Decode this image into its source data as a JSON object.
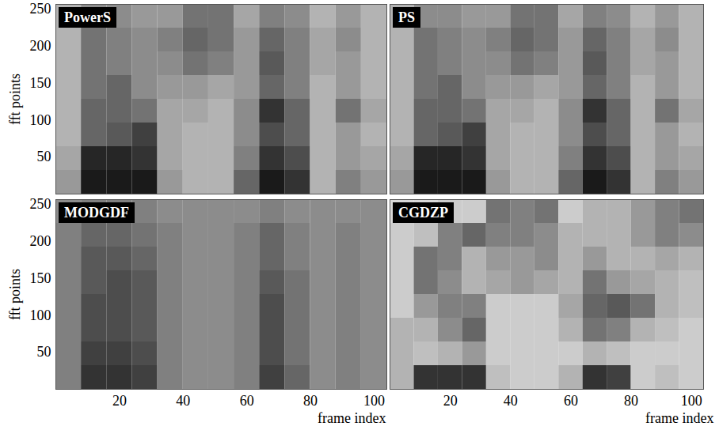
{
  "chart_data": [
    {
      "type": "heatmap",
      "title": "PowerS",
      "ylabel": "fft points",
      "tick_labels": "y",
      "xlim": [
        0,
        104
      ],
      "xticks": [
        20,
        40,
        60,
        80,
        100
      ],
      "ylim": [
        0,
        256
      ],
      "yticks": [
        50,
        100,
        150,
        200,
        250
      ],
      "cell_range": [
        0,
        1
      ],
      "x_bins": [
        0,
        8,
        16,
        24,
        32,
        40,
        48,
        56,
        64,
        72,
        80,
        88,
        96,
        104
      ],
      "y_bins": [
        0,
        32,
        64,
        96,
        128,
        160,
        192,
        224,
        256
      ],
      "cells": [
        [
          0.4,
          0.9,
          0.9,
          0.9,
          0.4,
          0.3,
          0.3,
          0.6,
          0.9,
          0.8,
          0.3,
          0.5,
          0.4
        ],
        [
          0.35,
          0.85,
          0.85,
          0.8,
          0.35,
          0.3,
          0.3,
          0.5,
          0.8,
          0.7,
          0.3,
          0.4,
          0.35
        ],
        [
          0.3,
          0.6,
          0.65,
          0.75,
          0.35,
          0.3,
          0.3,
          0.45,
          0.7,
          0.6,
          0.3,
          0.4,
          0.3
        ],
        [
          0.3,
          0.6,
          0.6,
          0.55,
          0.35,
          0.35,
          0.3,
          0.45,
          0.8,
          0.6,
          0.3,
          0.55,
          0.35
        ],
        [
          0.3,
          0.55,
          0.6,
          0.45,
          0.4,
          0.4,
          0.35,
          0.4,
          0.6,
          0.5,
          0.3,
          0.4,
          0.3
        ],
        [
          0.3,
          0.55,
          0.5,
          0.45,
          0.45,
          0.55,
          0.5,
          0.4,
          0.65,
          0.5,
          0.35,
          0.4,
          0.3
        ],
        [
          0.3,
          0.55,
          0.5,
          0.45,
          0.5,
          0.6,
          0.55,
          0.4,
          0.6,
          0.5,
          0.35,
          0.45,
          0.3
        ],
        [
          0.3,
          0.45,
          0.45,
          0.4,
          0.4,
          0.55,
          0.55,
          0.35,
          0.5,
          0.45,
          0.3,
          0.4,
          0.3
        ]
      ]
    },
    {
      "type": "heatmap",
      "title": "PS",
      "tick_labels": false,
      "xlim": [
        0,
        104
      ],
      "xticks": [
        20,
        40,
        60,
        80,
        100
      ],
      "ylim": [
        0,
        256
      ],
      "yticks": [
        50,
        100,
        150,
        200,
        250
      ],
      "cell_range": [
        0,
        1
      ],
      "x_bins": [
        0,
        8,
        16,
        24,
        32,
        40,
        48,
        56,
        64,
        72,
        80,
        88,
        96,
        104
      ],
      "y_bins": [
        0,
        32,
        64,
        96,
        128,
        160,
        192,
        224,
        256
      ],
      "cells": [
        [
          0.4,
          0.9,
          0.9,
          0.9,
          0.4,
          0.3,
          0.3,
          0.6,
          0.9,
          0.8,
          0.3,
          0.5,
          0.4
        ],
        [
          0.35,
          0.85,
          0.85,
          0.8,
          0.35,
          0.3,
          0.3,
          0.5,
          0.8,
          0.7,
          0.3,
          0.4,
          0.35
        ],
        [
          0.3,
          0.6,
          0.65,
          0.75,
          0.35,
          0.3,
          0.3,
          0.45,
          0.7,
          0.6,
          0.3,
          0.4,
          0.3
        ],
        [
          0.3,
          0.6,
          0.6,
          0.55,
          0.35,
          0.35,
          0.3,
          0.45,
          0.8,
          0.6,
          0.3,
          0.55,
          0.35
        ],
        [
          0.3,
          0.55,
          0.6,
          0.45,
          0.4,
          0.4,
          0.35,
          0.4,
          0.6,
          0.5,
          0.3,
          0.4,
          0.3
        ],
        [
          0.3,
          0.55,
          0.5,
          0.45,
          0.45,
          0.55,
          0.5,
          0.4,
          0.65,
          0.5,
          0.35,
          0.4,
          0.3
        ],
        [
          0.3,
          0.55,
          0.5,
          0.45,
          0.5,
          0.6,
          0.55,
          0.4,
          0.6,
          0.5,
          0.35,
          0.45,
          0.3
        ],
        [
          0.3,
          0.45,
          0.45,
          0.4,
          0.4,
          0.55,
          0.55,
          0.35,
          0.5,
          0.45,
          0.3,
          0.4,
          0.3
        ]
      ]
    },
    {
      "type": "heatmap",
      "title": "MODGDF",
      "xlabel": "frame index",
      "ylabel": "fft points",
      "tick_labels": true,
      "xlim": [
        0,
        104
      ],
      "xticks": [
        20,
        40,
        60,
        80,
        100
      ],
      "ylim": [
        0,
        256
      ],
      "yticks": [
        50,
        100,
        150,
        200,
        250
      ],
      "cell_range": [
        0,
        1
      ],
      "x_bins": [
        0,
        8,
        16,
        24,
        32,
        40,
        48,
        56,
        64,
        72,
        80,
        88,
        96,
        104
      ],
      "y_bins": [
        0,
        32,
        64,
        96,
        128,
        160,
        192,
        224,
        256
      ],
      "cells": [
        [
          0.5,
          0.8,
          0.8,
          0.75,
          0.5,
          0.45,
          0.45,
          0.5,
          0.75,
          0.6,
          0.45,
          0.5,
          0.45
        ],
        [
          0.5,
          0.75,
          0.75,
          0.7,
          0.5,
          0.45,
          0.45,
          0.5,
          0.7,
          0.55,
          0.45,
          0.5,
          0.45
        ],
        [
          0.5,
          0.7,
          0.7,
          0.65,
          0.5,
          0.45,
          0.45,
          0.5,
          0.7,
          0.55,
          0.45,
          0.5,
          0.45
        ],
        [
          0.5,
          0.7,
          0.7,
          0.65,
          0.5,
          0.45,
          0.45,
          0.5,
          0.7,
          0.55,
          0.45,
          0.5,
          0.45
        ],
        [
          0.5,
          0.65,
          0.7,
          0.65,
          0.5,
          0.45,
          0.45,
          0.5,
          0.65,
          0.55,
          0.45,
          0.5,
          0.45
        ],
        [
          0.5,
          0.65,
          0.65,
          0.6,
          0.5,
          0.45,
          0.45,
          0.5,
          0.6,
          0.5,
          0.45,
          0.5,
          0.45
        ],
        [
          0.5,
          0.6,
          0.6,
          0.55,
          0.5,
          0.45,
          0.45,
          0.5,
          0.6,
          0.5,
          0.45,
          0.5,
          0.45
        ],
        [
          0.45,
          0.5,
          0.5,
          0.5,
          0.45,
          0.45,
          0.45,
          0.45,
          0.5,
          0.45,
          0.45,
          0.45,
          0.45
        ]
      ]
    },
    {
      "type": "heatmap",
      "title": "CGDZP",
      "xlabel": "frame index",
      "tick_labels": "x",
      "xlim": [
        0,
        104
      ],
      "xticks": [
        20,
        40,
        60,
        80,
        100
      ],
      "ylim": [
        0,
        256
      ],
      "yticks": [
        50,
        100,
        150,
        200,
        250
      ],
      "cell_range": [
        0,
        1
      ],
      "x_bins": [
        0,
        8,
        16,
        24,
        32,
        40,
        48,
        56,
        64,
        72,
        80,
        88,
        96,
        104
      ],
      "y_bins": [
        0,
        32,
        64,
        96,
        128,
        160,
        192,
        224,
        256
      ],
      "cells": [
        [
          0.3,
          0.8,
          0.8,
          0.8,
          0.25,
          0.2,
          0.2,
          0.3,
          0.8,
          0.75,
          0.2,
          0.25,
          0.2
        ],
        [
          0.3,
          0.25,
          0.3,
          0.4,
          0.2,
          0.2,
          0.2,
          0.2,
          0.3,
          0.25,
          0.2,
          0.2,
          0.2
        ],
        [
          0.3,
          0.3,
          0.45,
          0.6,
          0.2,
          0.2,
          0.2,
          0.3,
          0.55,
          0.5,
          0.3,
          0.25,
          0.2
        ],
        [
          0.2,
          0.4,
          0.5,
          0.5,
          0.2,
          0.2,
          0.2,
          0.35,
          0.6,
          0.65,
          0.55,
          0.3,
          0.25
        ],
        [
          0.2,
          0.55,
          0.45,
          0.3,
          0.35,
          0.4,
          0.35,
          0.3,
          0.55,
          0.4,
          0.35,
          0.3,
          0.25
        ],
        [
          0.2,
          0.55,
          0.5,
          0.3,
          0.4,
          0.4,
          0.45,
          0.3,
          0.4,
          0.3,
          0.3,
          0.35,
          0.3
        ],
        [
          0.2,
          0.25,
          0.5,
          0.6,
          0.5,
          0.5,
          0.45,
          0.3,
          0.3,
          0.3,
          0.4,
          0.5,
          0.45
        ],
        [
          0.15,
          0.15,
          0.2,
          0.2,
          0.55,
          0.5,
          0.55,
          0.2,
          0.3,
          0.3,
          0.4,
          0.5,
          0.55
        ]
      ]
    }
  ]
}
